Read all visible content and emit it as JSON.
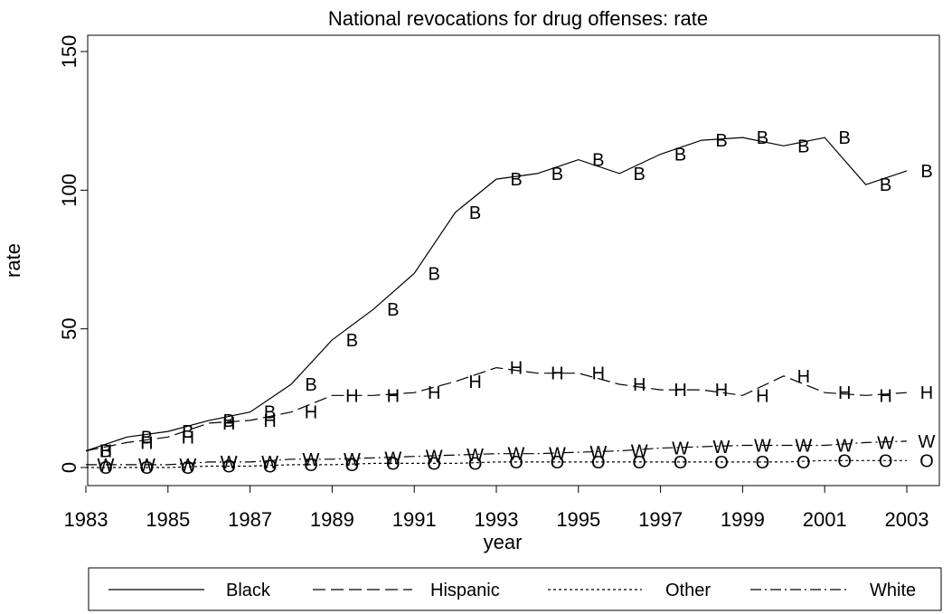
{
  "chart_data": {
    "type": "line",
    "title": "National revocations for drug offenses: rate",
    "xlabel": "year",
    "ylabel": "rate",
    "xlim": [
      1983,
      2004
    ],
    "ylim": [
      0,
      150
    ],
    "xticks": [
      1983,
      1985,
      1987,
      1989,
      1991,
      1993,
      1995,
      1997,
      1999,
      2001,
      2003
    ],
    "yticks": [
      0,
      50,
      100,
      150
    ],
    "grid": false,
    "legend_position": "bottom",
    "series": [
      {
        "name": "Black",
        "marker": "B",
        "style": "solid",
        "x": [
          1983,
          1984,
          1985,
          1986,
          1987,
          1988,
          1989,
          1990,
          1991,
          1992,
          1993,
          1994,
          1995,
          1996,
          1997,
          1998,
          1999,
          2000,
          2001,
          2002,
          2003
        ],
        "y": [
          6,
          11,
          13,
          17,
          20,
          30,
          46,
          57,
          70,
          92,
          104,
          106,
          111,
          106,
          113,
          118,
          119,
          116,
          119,
          102,
          107
        ]
      },
      {
        "name": "Hispanic",
        "marker": "H",
        "style": "dash",
        "x": [
          1983,
          1984,
          1985,
          1986,
          1987,
          1988,
          1989,
          1990,
          1991,
          1992,
          1993,
          1994,
          1995,
          1996,
          1997,
          1998,
          1999,
          2000,
          2001,
          2002,
          2003
        ],
        "y": [
          6,
          9,
          11,
          16,
          17,
          20,
          26,
          26,
          27,
          31,
          36,
          34,
          34,
          30,
          28,
          28,
          26,
          33,
          27,
          26,
          27
        ]
      },
      {
        "name": "Other",
        "marker": "O",
        "style": "dot",
        "x": [
          1983,
          1984,
          1985,
          1986,
          1987,
          1988,
          1989,
          1990,
          1991,
          1992,
          1993,
          1994,
          1995,
          1996,
          1997,
          1998,
          1999,
          2000,
          2001,
          2002,
          2003
        ],
        "y": [
          0,
          0,
          0,
          0.5,
          0.5,
          1,
          1,
          1.5,
          1.5,
          1.5,
          2,
          2,
          2,
          2,
          2,
          2,
          2,
          2,
          2.5,
          2.5,
          2.5
        ]
      },
      {
        "name": "White",
        "marker": "W",
        "style": "dashdot",
        "x": [
          1983,
          1984,
          1985,
          1986,
          1987,
          1988,
          1989,
          1990,
          1991,
          1992,
          1993,
          1994,
          1995,
          1996,
          1997,
          1998,
          1999,
          2000,
          2001,
          2002,
          2003
        ],
        "y": [
          1,
          1,
          1,
          2,
          2,
          3,
          3,
          3.5,
          4,
          4.5,
          5,
          5,
          5.5,
          6,
          7,
          7.5,
          8,
          8,
          8,
          9,
          9.5
        ]
      }
    ]
  }
}
